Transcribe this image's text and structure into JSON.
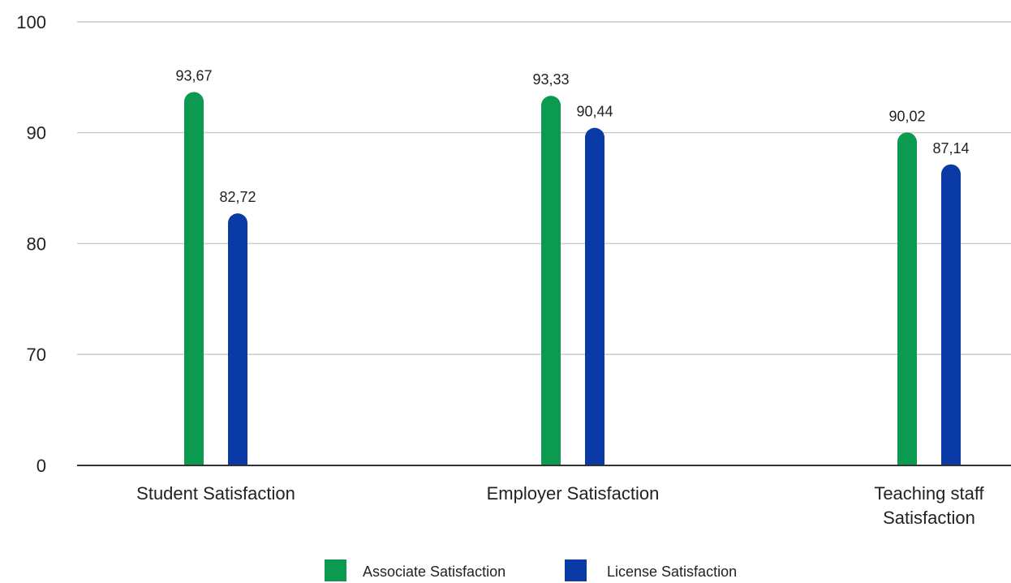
{
  "chart_data": {
    "type": "bar",
    "categories": [
      [
        "Student Satisfaction"
      ],
      [
        "Employer Satisfaction"
      ],
      [
        "Teaching staff",
        "Satisfaction"
      ]
    ],
    "series": [
      {
        "name": "Associate Satisfaction",
        "color": "#0b9a4f",
        "values": [
          93.67,
          93.33,
          90.02
        ],
        "labels": [
          "93,67",
          "93,33",
          "90,02"
        ]
      },
      {
        "name": "License Satisfaction",
        "color": "#0a3aa6",
        "values": [
          82.72,
          90.44,
          87.14
        ],
        "labels": [
          "82,72",
          "90,44",
          "87,14"
        ]
      }
    ],
    "yticks": [
      "0",
      "70",
      "80",
      "90",
      "100"
    ],
    "ytick_values": [
      0,
      70,
      80,
      90,
      100
    ],
    "axis_break": "between 0 and 70",
    "grid": true,
    "legend_position": "bottom-center",
    "title": "",
    "xlabel": "",
    "ylabel": ""
  }
}
